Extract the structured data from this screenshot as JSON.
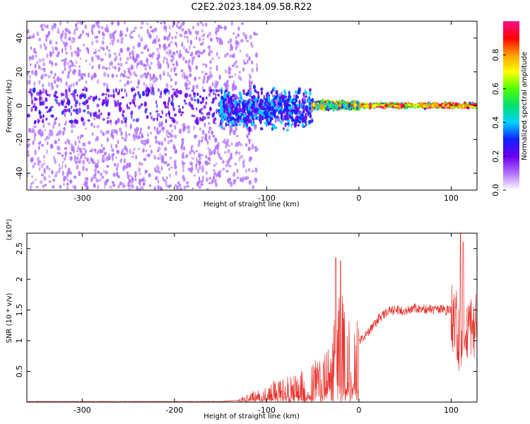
{
  "figure_title": "C2E2.2023.184.09.58.R22",
  "chart_data": [
    {
      "type": "heatmap",
      "title": "",
      "xlabel": "Height of straight line (km)",
      "ylabel": "Frequency (Hz)",
      "xlim": [
        -360,
        128
      ],
      "ylim": [
        -50,
        50
      ],
      "xticks": [
        -300,
        -200,
        -100,
        0,
        100
      ],
      "yticks": [
        -40,
        -20,
        0,
        20,
        40
      ],
      "colorbar": {
        "label": "Normalized spectral amplitude",
        "range": [
          0,
          1
        ],
        "ticks": [
          "0.0",
          "0.2",
          "0.4",
          "0.6",
          "0.8"
        ],
        "colors": [
          "#ffffff",
          "#b070ff",
          "#6a00f0",
          "#1020ff",
          "#00d0ff",
          "#00e070",
          "#50ff00",
          "#ffff00",
          "#ffa000",
          "#ff0000",
          "#ff1090"
        ]
      },
      "regions": [
        {
          "x": [
            -360,
            -150
          ],
          "freq_spread": [
            -50,
            50
          ],
          "level": 0.1
        },
        {
          "x": [
            -150,
            -110
          ],
          "freq_spread": [
            -50,
            50
          ],
          "level": 0.1
        },
        {
          "x": [
            -150,
            -50
          ],
          "freq_spread": [
            -15,
            15
          ],
          "level": 0.3
        },
        {
          "x": [
            -50,
            0
          ],
          "freq_spread": [
            -3,
            3
          ],
          "level": 0.6
        },
        {
          "x": [
            0,
            128
          ],
          "freq_spread": [
            -1.5,
            1.5
          ],
          "level": 0.75
        }
      ]
    },
    {
      "type": "line",
      "title": "",
      "xlabel": "Height of straight line (km)",
      "ylabel": "SNR (10 * v/v)",
      "yscale_label": "(x10⁴)",
      "color": "#e8302a",
      "xlim": [
        -360,
        128
      ],
      "ylim": [
        0,
        2.75
      ],
      "xticks": [
        -300,
        -200,
        -100,
        0,
        100
      ],
      "yticks": [
        0.5,
        1.0,
        1.5,
        2.0,
        2.5
      ],
      "envelope": {
        "x": [
          -360,
          -150,
          -130,
          -120,
          -100,
          -80,
          -60,
          -50,
          -40,
          -30,
          -25,
          -20,
          -15,
          -10,
          -5,
          0,
          10,
          20,
          30,
          40,
          50,
          60,
          70,
          80,
          90,
          100,
          105,
          110,
          115,
          120,
          128
        ],
        "y": [
          0.01,
          0.01,
          0.03,
          0.1,
          0.2,
          0.3,
          0.35,
          0.45,
          0.55,
          0.75,
          1.2,
          1.35,
          0.95,
          1.0,
          1.1,
          1.0,
          1.15,
          1.35,
          1.48,
          1.52,
          1.5,
          1.55,
          1.53,
          1.52,
          1.52,
          1.5,
          1.45,
          1.0,
          1.3,
          1.4,
          1.42
        ]
      },
      "spikes": [
        {
          "x": -25,
          "y": 2.35
        },
        {
          "x": -20,
          "y": 2.3
        },
        {
          "x": 110,
          "y": 2.75
        },
        {
          "x": 113,
          "y": 2.6
        }
      ]
    }
  ]
}
